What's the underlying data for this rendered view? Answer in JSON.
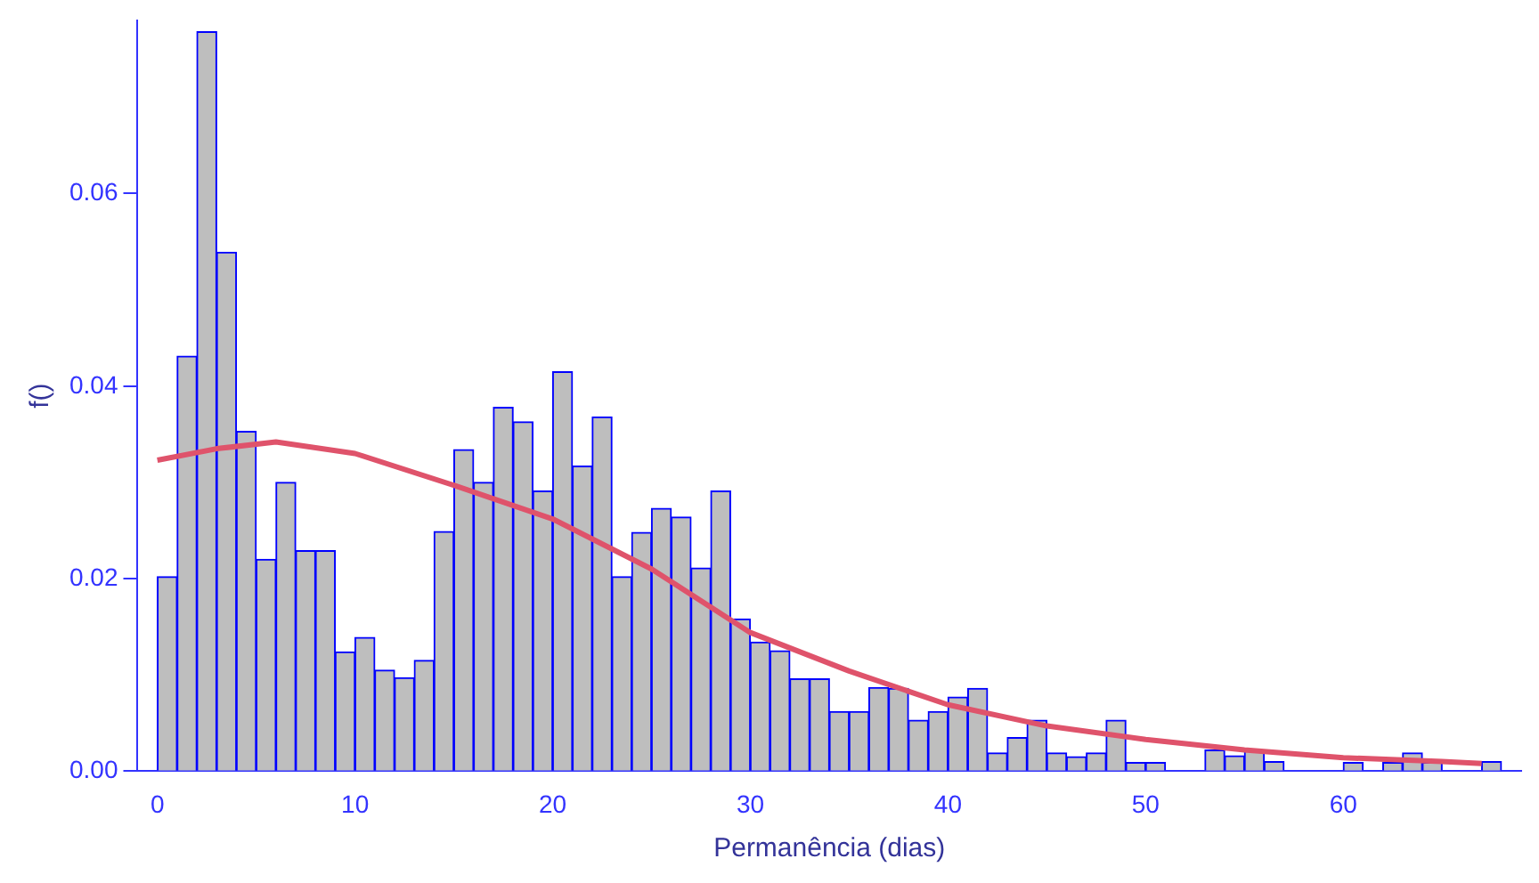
{
  "chart_data": {
    "type": "histogram",
    "xlabel": "Permanência (dias)",
    "ylabel": "f()",
    "bins": [
      0,
      1,
      2,
      3,
      4,
      5,
      6,
      7,
      8,
      9,
      10,
      11,
      12,
      13,
      14,
      15,
      16,
      17,
      18,
      19,
      20,
      21,
      22,
      23,
      24,
      25,
      26,
      27,
      28,
      29,
      30,
      31,
      32,
      33,
      34,
      35,
      36,
      37,
      38,
      39,
      40,
      41,
      42,
      43,
      44,
      45,
      46,
      47,
      48,
      49,
      50,
      51,
      52,
      53,
      54,
      55,
      56,
      57,
      58,
      59,
      60,
      61,
      62,
      63,
      64,
      65,
      66,
      67,
      68
    ],
    "values": [
      0.0202,
      0.0431,
      0.0768,
      0.0539,
      0.0353,
      0.022,
      0.03,
      0.0229,
      0.0229,
      0.0124,
      0.0139,
      0.0105,
      0.0097,
      0.0115,
      0.0249,
      0.0334,
      0.03,
      0.0378,
      0.0363,
      0.0291,
      0.0415,
      0.0317,
      0.0368,
      0.0202,
      0.0248,
      0.0273,
      0.0264,
      0.0211,
      0.0291,
      0.0158,
      0.0134,
      0.0125,
      0.0096,
      0.0096,
      0.0062,
      0.0062,
      0.0087,
      0.0086,
      0.0053,
      0.0062,
      0.0077,
      0.0086,
      0.0019,
      0.0035,
      0.0053,
      0.0019,
      0.0015,
      0.0019,
      0.0053,
      0.0009,
      0.0009,
      0,
      0,
      0.0022,
      0.0016,
      0.0022,
      0.001,
      0,
      0,
      0,
      0.0009,
      0,
      0.0009,
      0.0019,
      0.0009,
      0,
      0,
      0.001
    ],
    "color": "#bebebe",
    "series": [
      {
        "type": "line",
        "color": "#df536b",
        "marker": "none",
        "x": [
          0,
          3,
          6,
          10,
          15,
          20,
          25,
          30,
          35,
          40,
          45,
          50,
          55,
          60,
          65,
          67
        ],
        "values": [
          0.0323,
          0.0335,
          0.0342,
          0.033,
          0.0297,
          0.0262,
          0.021,
          0.0144,
          0.0104,
          0.0069,
          0.0047,
          0.0033,
          0.0022,
          0.0014,
          0.001,
          0.0008
        ]
      }
    ],
    "xlim": [
      -1,
      69
    ],
    "xticks": [
      0,
      10,
      20,
      30,
      40,
      50,
      60
    ],
    "ylim": [
      0,
      0.078
    ],
    "yticks": [
      {
        "value": 0,
        "label": "0.00"
      },
      {
        "value": 0.02,
        "label": "0.02"
      },
      {
        "value": 0.04,
        "label": "0.04"
      },
      {
        "value": 0.06,
        "label": "0.06"
      }
    ],
    "grid": false,
    "legend": false
  }
}
